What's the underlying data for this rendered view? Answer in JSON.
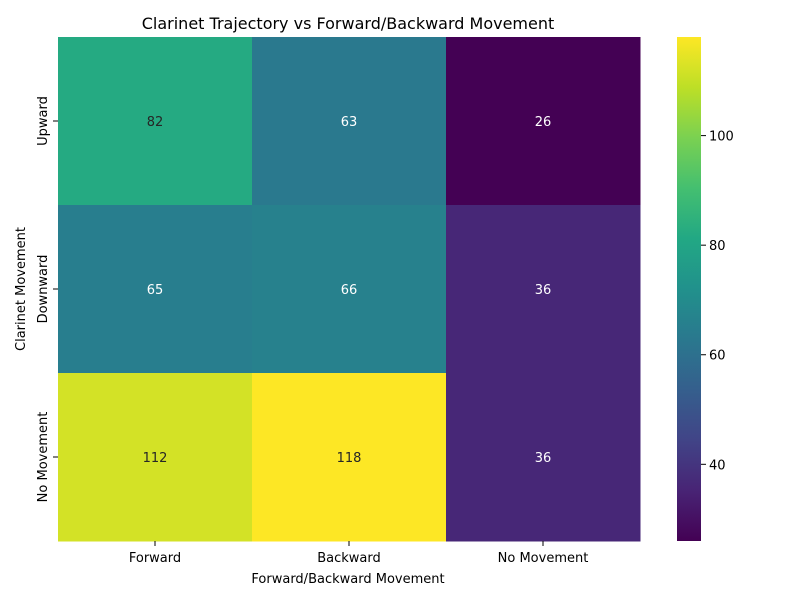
{
  "chart_data": {
    "type": "heatmap",
    "title": "Clarinet Trajectory vs Forward/Backward Movement",
    "xlabel": "Forward/Backward Movement",
    "ylabel": "Clarinet Movement",
    "x_categories": [
      "Forward",
      "Backward",
      "No Movement"
    ],
    "y_categories": [
      "Upward",
      "Downward",
      "No Movement"
    ],
    "values": [
      [
        82,
        63,
        26
      ],
      [
        65,
        66,
        36
      ],
      [
        112,
        118,
        36
      ]
    ],
    "colormap": "viridis",
    "color_range": [
      26,
      118
    ],
    "colorbar_ticks": [
      40,
      60,
      80,
      100
    ],
    "annotations": true
  }
}
